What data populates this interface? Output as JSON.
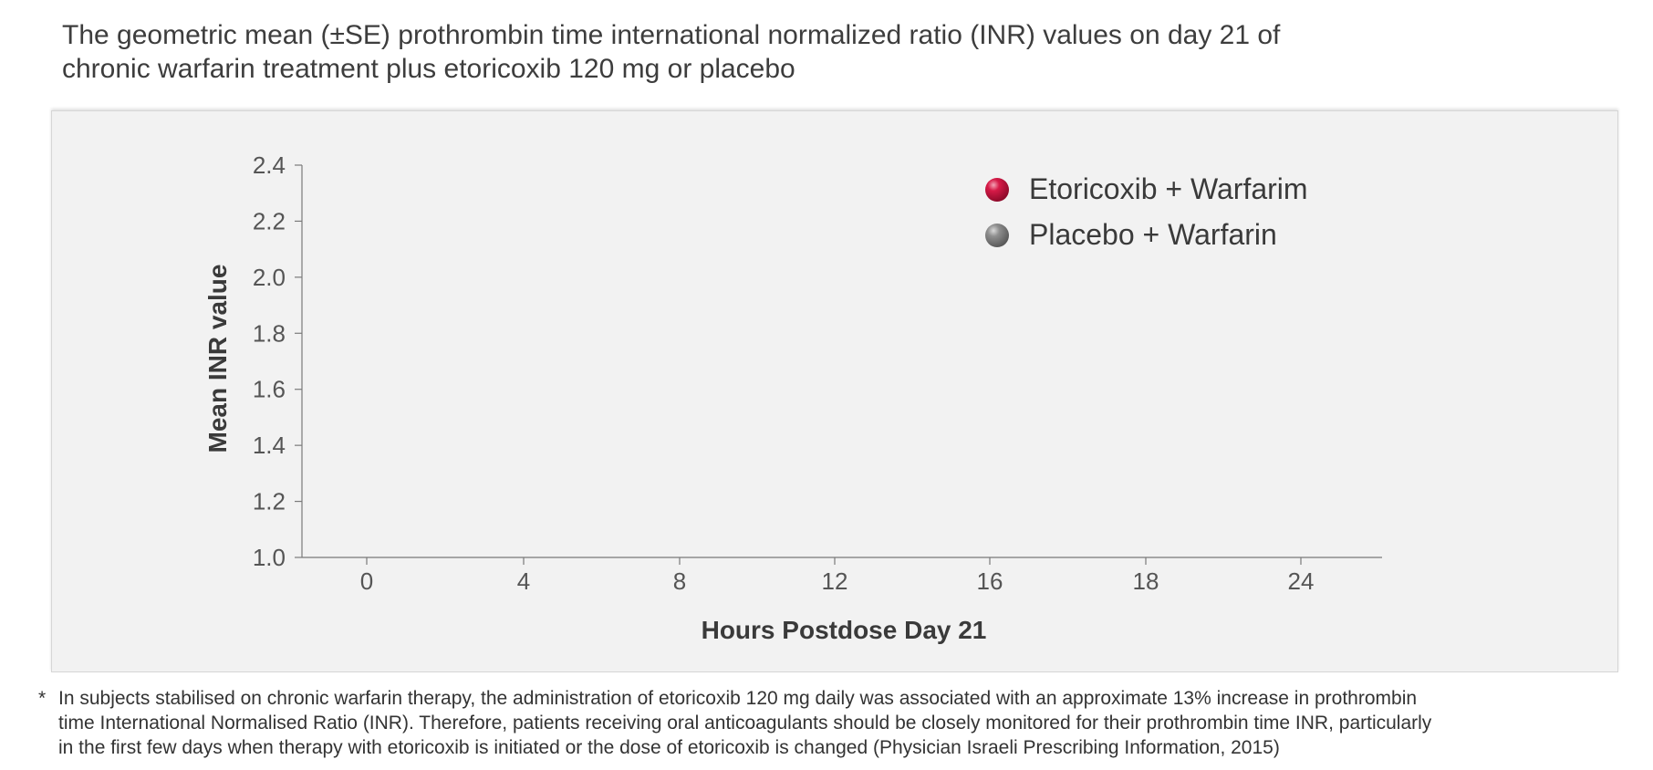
{
  "title": {
    "line1": "The geometric mean  (±SE) prothrombin time international normalized ratio (INR) values on day 21 of",
    "line2": "chronic warfarin treatment plus etoricoxib 120 mg or placebo"
  },
  "chart_data": {
    "type": "scatter",
    "xlabel": "Hours Postdose Day 21",
    "ylabel": "Mean INR value",
    "x_categories": [
      "0",
      "4",
      "8",
      "12",
      "16",
      "18",
      "24"
    ],
    "y_ticks": [
      "1.0",
      "1.2",
      "1.4",
      "1.6",
      "1.8",
      "2.0",
      "2.2",
      "2.4"
    ],
    "ylim": [
      1.0,
      2.4
    ],
    "grid": false,
    "legend_position": "top-right",
    "series": [
      {
        "name": "Etoricoxib + Warfarim",
        "color": "#c8103e",
        "values": []
      },
      {
        "name": "Placebo + Warfarin",
        "color": "#8c8c8c",
        "values": []
      }
    ]
  },
  "footnote": {
    "marker": "*",
    "line1": "In subjects stabilised on chronic warfarin therapy, the administration of etoricoxib 120 mg daily was associated with an approximate 13% increase in prothrombin",
    "line2": "time International Normalised Ratio (INR). Therefore, patients receiving oral anticoagulants should be closely monitored for their prothrombin time INR, particularly",
    "line3": "in the first few days when therapy with etoricoxib is initiated or the dose of etoricoxib is changed  (Physician Israeli Prescribing  Information, 2015)"
  }
}
